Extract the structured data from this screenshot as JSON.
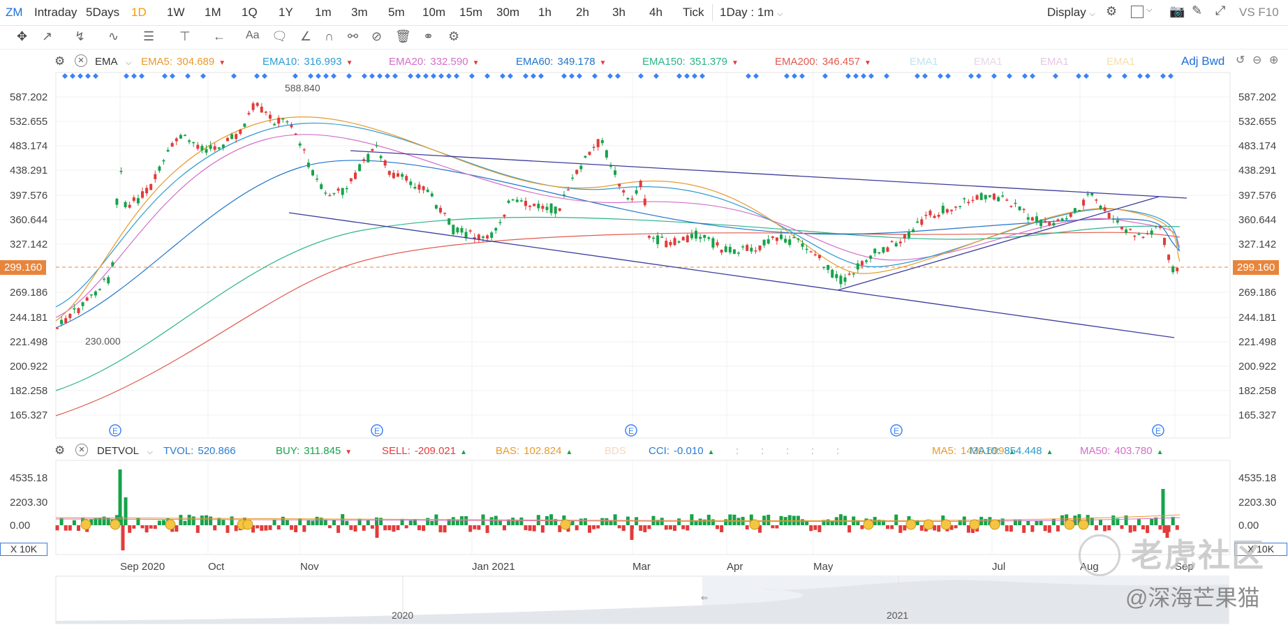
{
  "toolbar": {
    "symbol": "ZM",
    "timeframes": [
      "Intraday",
      "5Days",
      "1D",
      "1W",
      "1M",
      "1Q",
      "1Y",
      "1m",
      "3m",
      "5m",
      "10m",
      "15m",
      "30m",
      "1h",
      "2h",
      "3h",
      "4h",
      "Tick"
    ],
    "active_timeframe": "1D",
    "interval_select": "1Day : 1m",
    "display_label": "Display",
    "vs_label": "VS",
    "f10_label": "F10"
  },
  "ema_legend": {
    "name": "EMA",
    "items": [
      {
        "label": "EMA5:",
        "value": "304.689",
        "color": "#e89a2c"
      },
      {
        "label": "EMA10:",
        "value": "316.993",
        "color": "#2b9bd1"
      },
      {
        "label": "EMA20:",
        "value": "332.590",
        "color": "#d46ec8"
      },
      {
        "label": "EMA60:",
        "value": "349.178",
        "color": "#1f74c9"
      },
      {
        "label": "EMA150:",
        "value": "351.379",
        "color": "#29b38a"
      },
      {
        "label": "EMA200:",
        "value": "346.457",
        "color": "#e05a4f"
      }
    ],
    "faded": [
      "EMA1",
      "EMA1",
      "EMA1",
      "EMA1"
    ],
    "adj_label": "Adj Bwd"
  },
  "price_axis": [
    "587.202",
    "532.655",
    "483.174",
    "438.291",
    "397.576",
    "360.644",
    "327.142",
    "299.160",
    "269.186",
    "244.181",
    "221.498",
    "200.922",
    "182.258",
    "165.327"
  ],
  "current_price": "299.160",
  "high_label": "588.840",
  "low_label": "230.000",
  "vol_legend": {
    "name": "DETVOL",
    "items": [
      {
        "label": "TVOL:",
        "value": "520.866",
        "color": "#2b7bd1",
        "arrow": ""
      },
      {
        "label": "BUY:",
        "value": "311.845",
        "color": "#16a34a",
        "arrow": "down"
      },
      {
        "label": "SELL:",
        "value": "-209.021",
        "color": "#e23b3b",
        "arrow": "up"
      },
      {
        "label": "BAS:",
        "value": "102.824",
        "color": "#e89a2c",
        "arrow": "up"
      },
      {
        "label": "CCI:",
        "value": "-0.010",
        "color": "#2b7bd1",
        "arrow": "up"
      },
      {
        "label": "MA5:",
        "value": "1430.699",
        "color": "#e89a2c",
        "arrow": "up"
      },
      {
        "label": "MA10:",
        "value": "854.448",
        "color": "#2b9bd1",
        "arrow": "up"
      },
      {
        "label": "MA50:",
        "value": "403.780",
        "color": "#d46ec8",
        "arrow": "up"
      }
    ],
    "faded": "BDS"
  },
  "volume_axis": [
    "4535.18",
    "2203.30",
    "0.00"
  ],
  "volume_unit": "X 10K",
  "date_axis": [
    "Sep 2020",
    "Oct",
    "Nov",
    "Jan 2021",
    "Mar",
    "Apr",
    "May",
    "Jul",
    "Aug",
    "Sep"
  ],
  "navigator_years": [
    "2020",
    "2021"
  ],
  "watermark": {
    "brand": "老虎社区",
    "user": "@深海芒果猫"
  },
  "colors": {
    "up": "#16a34a",
    "down": "#e23b3b",
    "trend": "#3b3b9c",
    "accent": "#f59a00"
  }
}
